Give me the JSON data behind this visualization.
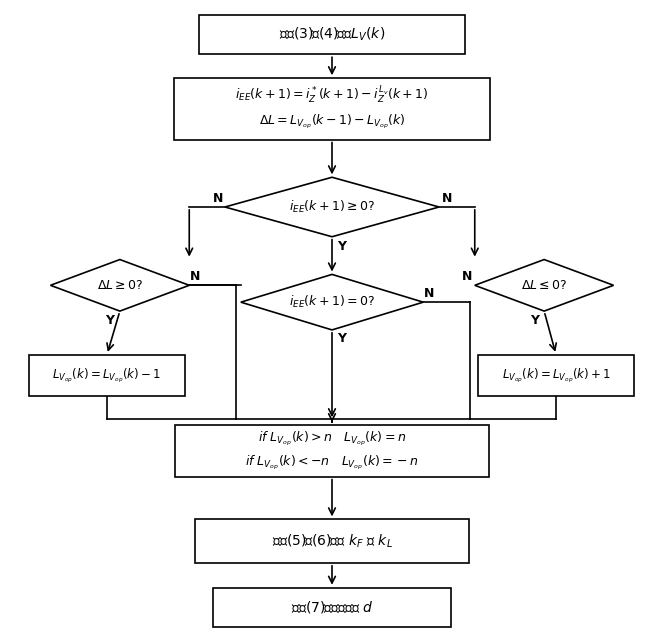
{
  "bg_color": "#ffffff",
  "fig_width": 6.65,
  "fig_height": 6.42,
  "dpi": 100,
  "box1_text": "根据(3)和(4)计算$L_V(k)$",
  "box2_line1": "$i_{EE}(k+1)=i_Z^*(k+1)-i_Z^{L_v}(k+1)$",
  "box2_line2": "$\\Delta L=L_{V_{op}}(k-1)-L_{V_{op}}(k)$",
  "d1_text": "$i_{EE}(k+1)\\geq 0?$",
  "d2_text": "$\\Delta L\\geq 0?$",
  "d3_text": "$i_{EE}(k+1)=0?$",
  "d4_text": "$\\Delta L\\leq 0?$",
  "boxL_text": "$L_{V_{op}}(k)=L_{V_{op}}(k)-1$",
  "boxR_text": "$L_{V_{op}}(k)=L_{V_{op}}(k)+1$",
  "box3_line1": "$if\\ L_{V_{op}}(k)>n\\quad L_{V_{op}}(k)=n$",
  "box3_line2": "$if\\ L_{V_{op}}(k)<-n\\quad L_{V_{op}}(k)=-n$",
  "box4_text": "根据(5)和(6)计算 $k_F$ 和 $k_L$",
  "box5_text": "根据(7)计算占空比 $d$"
}
